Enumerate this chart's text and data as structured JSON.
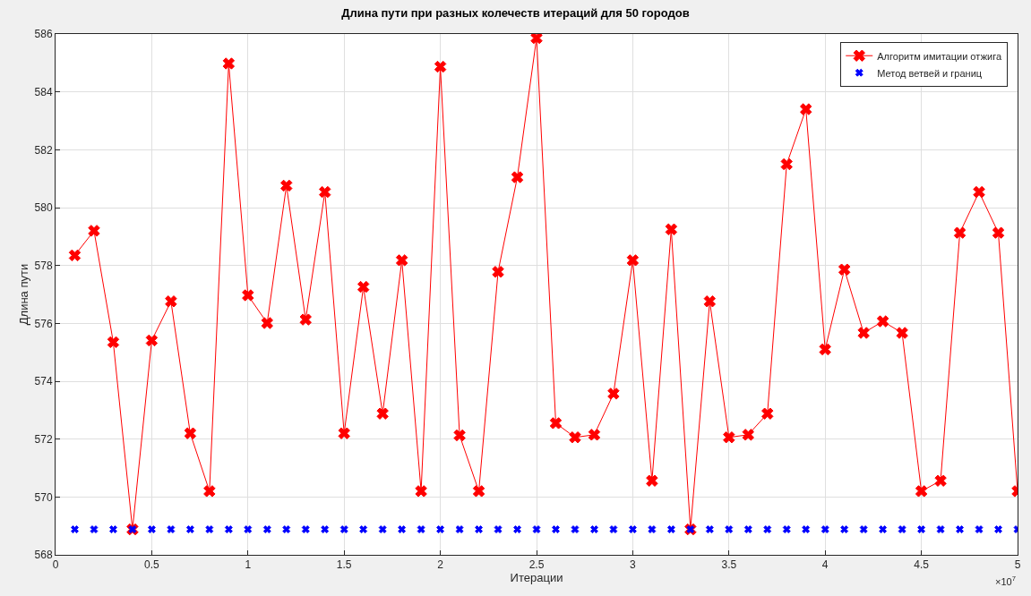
{
  "chart_data": {
    "type": "line",
    "title": "Длина пути при разных колечеств итераций для 50 городов",
    "xlabel": "Итерации",
    "ylabel": "Длина пути",
    "annotations": [
      "×10$^{7}$"
    ],
    "x": [
      0.1,
      0.2,
      0.3,
      0.4,
      0.5,
      0.6,
      0.7,
      0.8,
      0.9,
      1.0,
      1.1,
      1.2,
      1.3,
      1.4,
      1.5,
      1.6,
      1.7,
      1.8,
      1.9,
      2.0,
      2.1,
      2.2,
      2.3,
      2.4,
      2.5,
      2.6,
      2.7,
      2.8,
      2.9,
      3.0,
      3.1,
      3.2,
      3.3,
      3.4,
      3.5,
      3.6,
      3.7,
      3.8,
      3.9,
      4.0,
      4.1,
      4.2,
      4.3,
      4.4,
      4.5,
      4.6,
      4.7,
      4.8,
      4.9,
      5.0
    ],
    "series": [
      {
        "name": "Алгоритм имитации отжига",
        "color": "#ff0000",
        "marker": "cross",
        "values": [
          578.35,
          579.2,
          575.35,
          568.88,
          575.41,
          576.76,
          572.2,
          570.2,
          584.98,
          576.97,
          576.01,
          580.76,
          576.13,
          580.54,
          572.2,
          577.26,
          572.88,
          578.18,
          570.2,
          584.87,
          572.13,
          570.2,
          577.78,
          581.05,
          585.86,
          572.55,
          572.06,
          572.15,
          573.57,
          578.18,
          570.56,
          579.25,
          568.88,
          576.76,
          572.06,
          572.15,
          572.88,
          581.5,
          583.4,
          575.1,
          577.86,
          575.67,
          576.07,
          575.67,
          570.2,
          570.56,
          579.13,
          580.54,
          579.13,
          570.2
        ]
      },
      {
        "name": "Метод ветвей и границ",
        "color": "#0000ff",
        "type": "scatter",
        "marker": "cross",
        "values": [
          568.88,
          568.88,
          568.88,
          568.88,
          568.88,
          568.88,
          568.88,
          568.88,
          568.88,
          568.88,
          568.88,
          568.88,
          568.88,
          568.88,
          568.88,
          568.88,
          568.88,
          568.88,
          568.88,
          568.88,
          568.88,
          568.88,
          568.88,
          568.88,
          568.88,
          568.88,
          568.88,
          568.88,
          568.88,
          568.88,
          568.88,
          568.88,
          568.88,
          568.88,
          568.88,
          568.88,
          568.88,
          568.88,
          568.88,
          568.88,
          568.88,
          568.88,
          568.88,
          568.88,
          568.88,
          568.88,
          568.88,
          568.88,
          568.88,
          568.88
        ]
      }
    ],
    "xlim": [
      0,
      5
    ],
    "xticks": [
      0,
      0.5,
      1,
      1.5,
      2,
      2.5,
      3,
      3.5,
      4,
      4.5,
      5
    ],
    "ylim": [
      568,
      586
    ],
    "yticks": [
      568,
      570,
      572,
      574,
      576,
      578,
      580,
      582,
      584,
      586
    ],
    "grid": true,
    "legend": "top right"
  }
}
